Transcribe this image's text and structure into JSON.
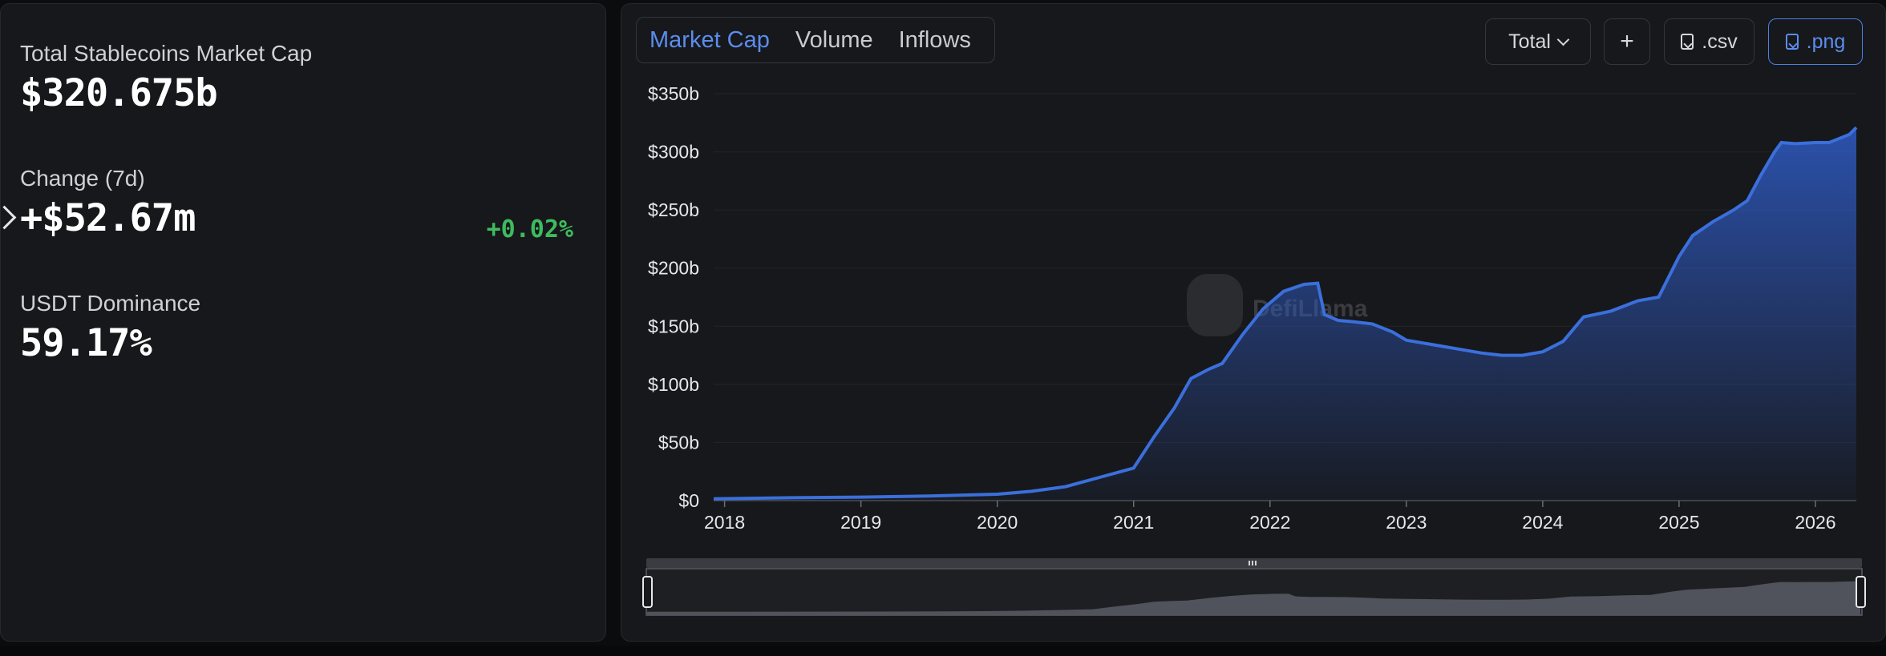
{
  "summary": {
    "market_cap_label": "Total Stablecoins Market Cap",
    "market_cap_value": "$320.675b",
    "change_label": "Change (7d)",
    "change_value": "+$52.67m",
    "change_pct": "+0.02%",
    "dominance_label": "USDT Dominance",
    "dominance_value": "59.17%"
  },
  "tabs": [
    "Market Cap",
    "Volume",
    "Inflows"
  ],
  "controls": {
    "total_label": "Total",
    "add_label": "+",
    "csv_label": ".csv",
    "png_label": ".png"
  },
  "watermark": "DefiLlama",
  "colors": {
    "line": "#3b6fdc",
    "positive": "#3dbb5e",
    "accent": "#5b8def"
  },
  "chart_data": {
    "type": "area",
    "title": "Total Stablecoins Market Cap",
    "xlabel": "",
    "ylabel": "",
    "xlim": [
      2017.92,
      2026.3
    ],
    "ylim": [
      0,
      350
    ],
    "yticks": [
      0,
      50,
      100,
      150,
      200,
      250,
      300,
      350
    ],
    "ytick_labels": [
      "$0",
      "$50b",
      "$100b",
      "$150b",
      "$200b",
      "$250b",
      "$300b",
      "$350b"
    ],
    "xticks": [
      2018,
      2019,
      2020,
      2021,
      2022,
      2023,
      2024,
      2025,
      2026
    ],
    "xtick_labels": [
      "2018",
      "2019",
      "2020",
      "2021",
      "2022",
      "2023",
      "2024",
      "2025",
      "2026"
    ],
    "grid": true,
    "series": [
      {
        "name": "Total Stablecoins Market Cap ($b)",
        "x": [
          2017.92,
          2018.5,
          2019.0,
          2019.5,
          2020.0,
          2020.25,
          2020.5,
          2020.75,
          2021.0,
          2021.15,
          2021.3,
          2021.42,
          2021.55,
          2021.65,
          2021.8,
          2021.95,
          2022.1,
          2022.25,
          2022.35,
          2022.4,
          2022.5,
          2022.6,
          2022.75,
          2022.9,
          2023.0,
          2023.2,
          2023.4,
          2023.55,
          2023.7,
          2023.85,
          2024.0,
          2024.15,
          2024.3,
          2024.5,
          2024.7,
          2024.85,
          2025.0,
          2025.1,
          2025.25,
          2025.4,
          2025.5,
          2025.6,
          2025.7,
          2025.75,
          2025.85,
          2026.0,
          2026.1,
          2026.25,
          2026.3
        ],
        "values": [
          1.5,
          2.5,
          3.0,
          4.0,
          5.5,
          8,
          12,
          20,
          28,
          55,
          80,
          105,
          113,
          118,
          143,
          165,
          180,
          186,
          187,
          160,
          155,
          154,
          152,
          145,
          138,
          134,
          130,
          127,
          125,
          125,
          128,
          137,
          158,
          163,
          172,
          175,
          210,
          228,
          240,
          250,
          258,
          280,
          300,
          308,
          307,
          308,
          308,
          315,
          321
        ]
      }
    ]
  }
}
